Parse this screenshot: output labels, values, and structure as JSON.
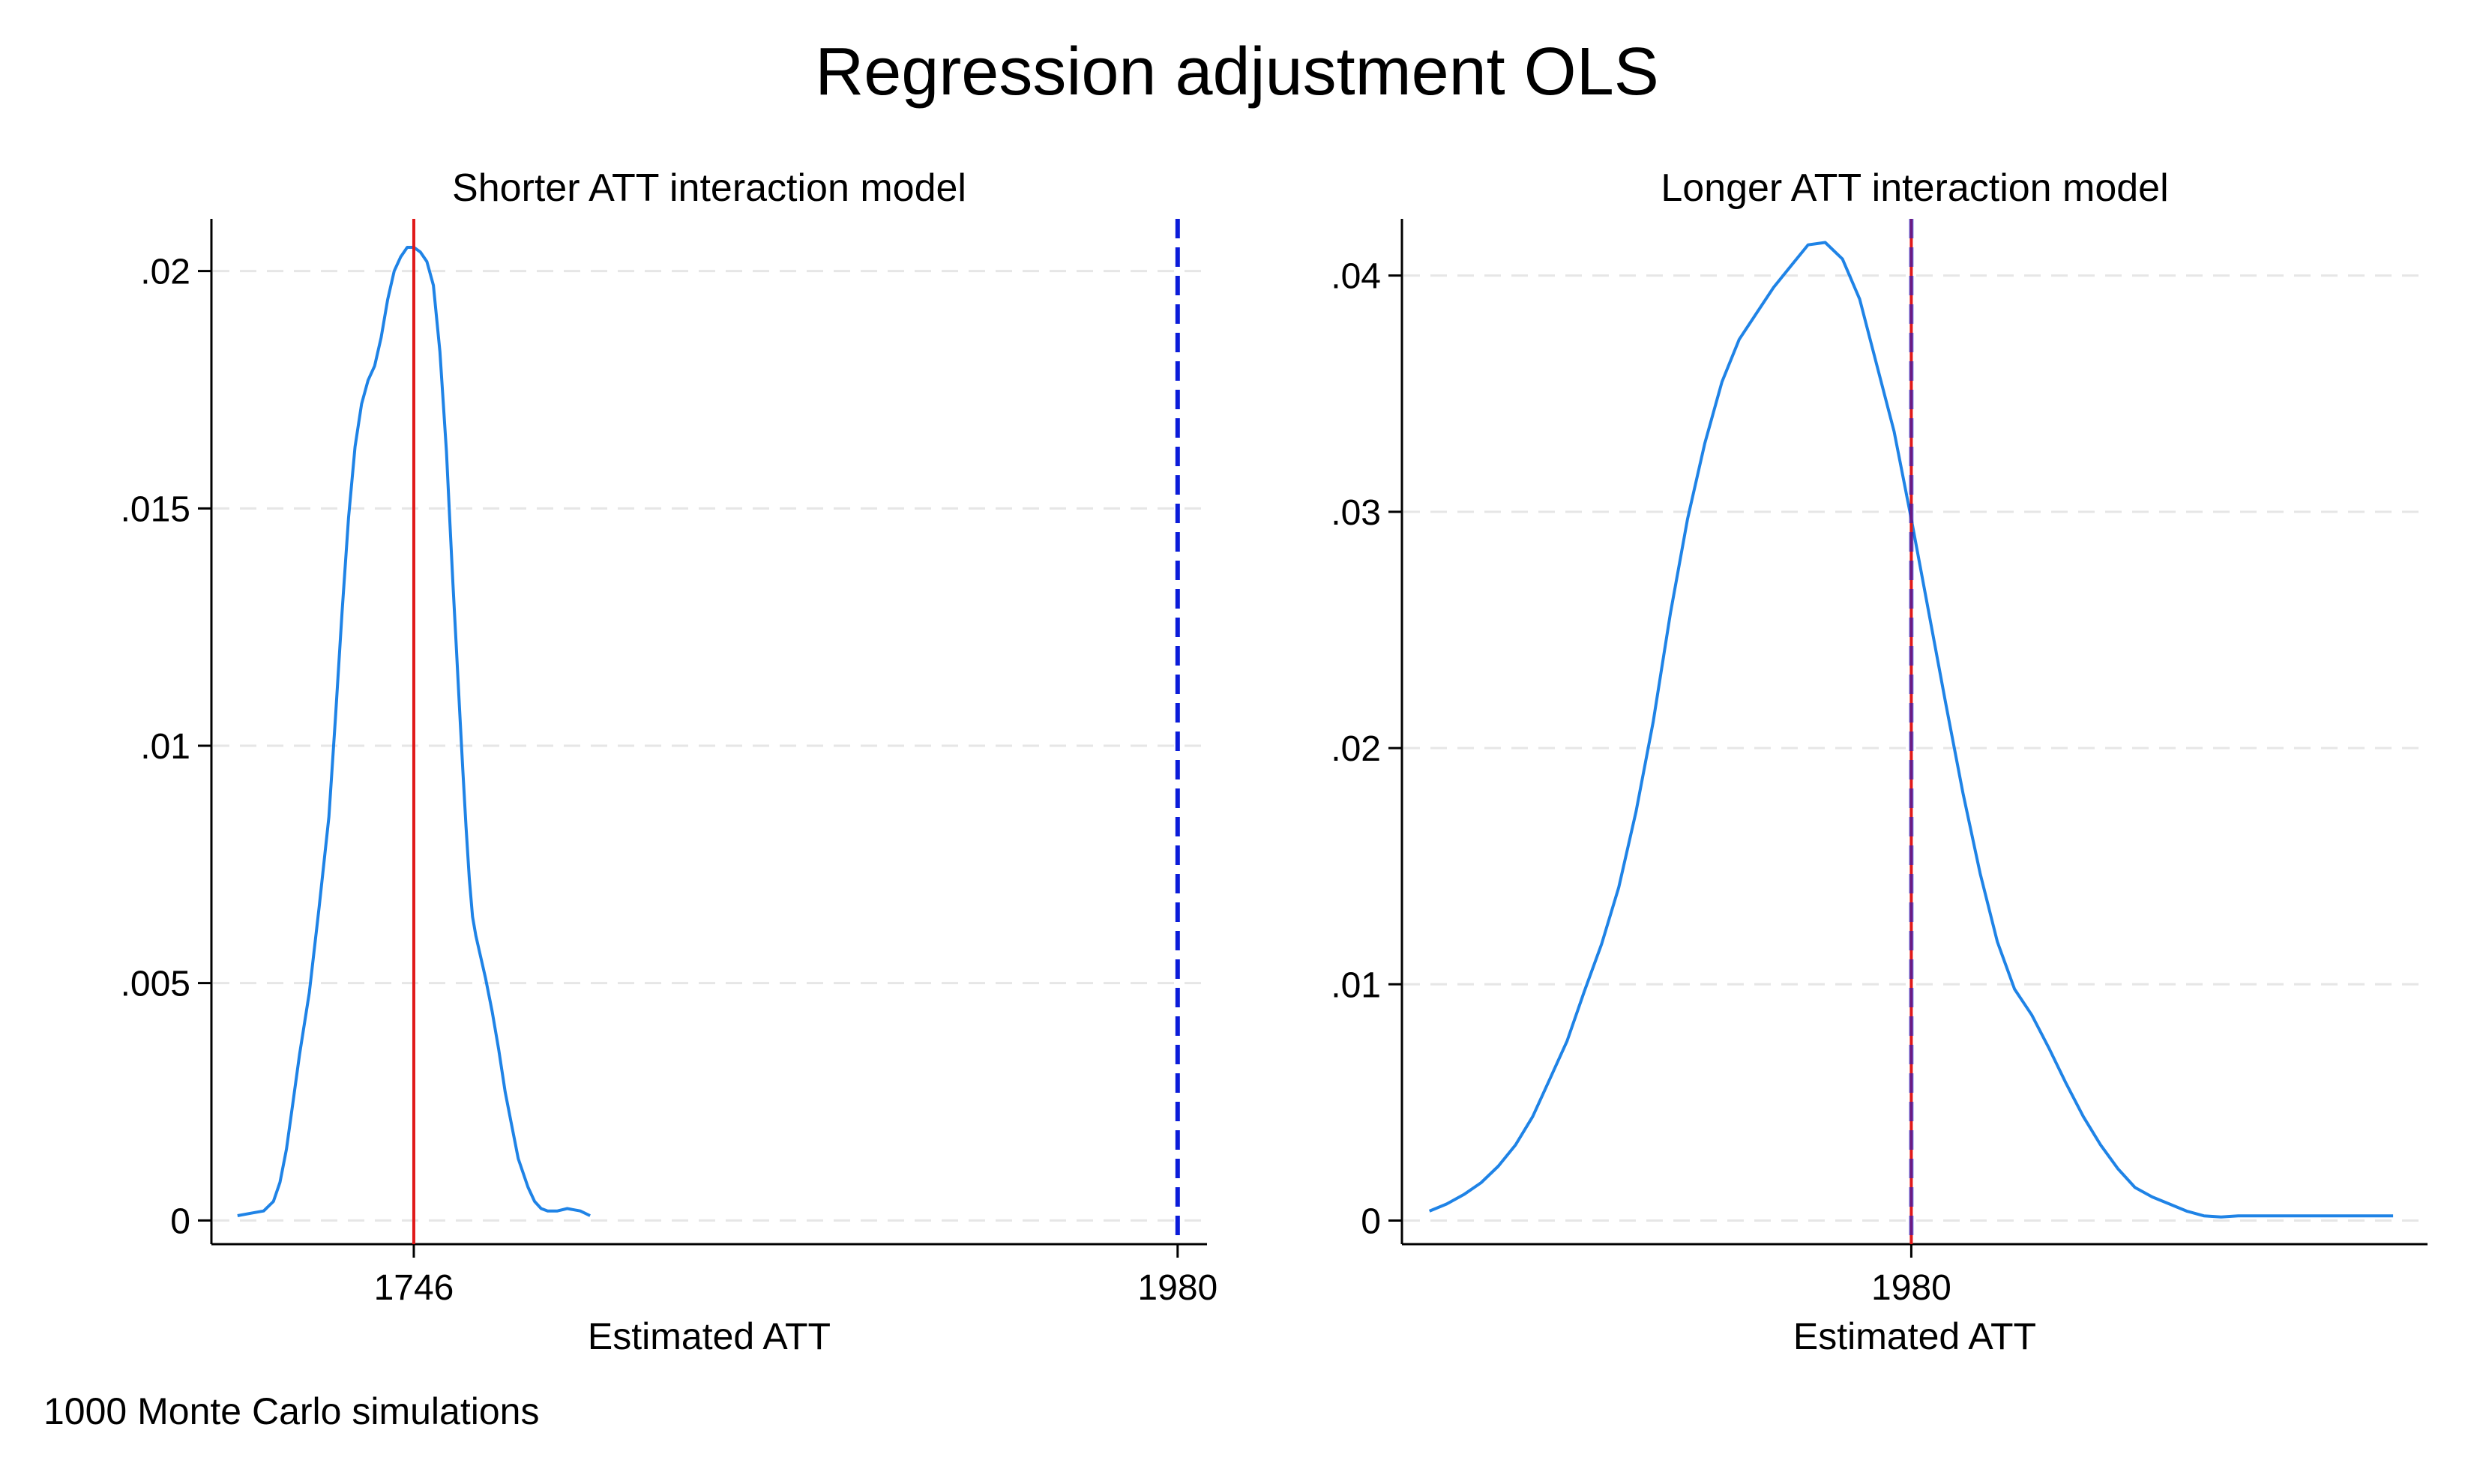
{
  "title": "Regression adjustment OLS",
  "note": "1000 Monte Carlo simulations",
  "colors": {
    "density": "#1f83e6",
    "estimate_line": "#e01919",
    "true_line": "#0b1cd9",
    "axis": "#000000",
    "grid": "#e6e6e6"
  },
  "chart_data": [
    {
      "type": "line",
      "title": "Shorter ATT interaction model",
      "xlabel": "Estimated ATT",
      "ylabel": "",
      "xlim": [
        1684,
        1989
      ],
      "ylim": [
        -0.0005,
        0.0211
      ],
      "xticks": [
        {
          "value": 1746,
          "label": "1746"
        },
        {
          "value": 1980,
          "label": "1980"
        }
      ],
      "yticks": [
        {
          "value": 0,
          "label": "0"
        },
        {
          "value": 0.005,
          "label": ".005"
        },
        {
          "value": 0.01,
          "label": ".01"
        },
        {
          "value": 0.015,
          "label": ".015"
        },
        {
          "value": 0.02,
          "label": ".02"
        }
      ],
      "grid": true,
      "vlines": [
        {
          "value": 1746,
          "style": "solid",
          "role": "estimate"
        },
        {
          "value": 1980,
          "style": "dashed",
          "role": "true"
        }
      ],
      "series": [
        {
          "x": [
            1692,
            1696,
            1700,
            1703,
            1705,
            1707,
            1709,
            1711,
            1714,
            1717,
            1720,
            1722,
            1724,
            1726,
            1728,
            1730,
            1732,
            1734,
            1736,
            1738,
            1740,
            1742,
            1744,
            1746,
            1748,
            1750,
            1752,
            1754,
            1756,
            1757,
            1758,
            1759,
            1760,
            1761,
            1762,
            1763,
            1764,
            1765,
            1766,
            1768,
            1770,
            1772,
            1774,
            1776,
            1778,
            1781,
            1783,
            1785,
            1787,
            1790,
            1793,
            1797,
            1800
          ],
          "y": [
            0.0001,
            0.00015,
            0.0002,
            0.0004,
            0.0008,
            0.0015,
            0.0025,
            0.0035,
            0.0048,
            0.0066,
            0.0085,
            0.0106,
            0.0128,
            0.0148,
            0.0163,
            0.0172,
            0.0177,
            0.018,
            0.0186,
            0.0194,
            0.02,
            0.0203,
            0.0205,
            0.0205,
            0.0204,
            0.0202,
            0.0197,
            0.0183,
            0.0162,
            0.0148,
            0.0134,
            0.0121,
            0.0108,
            0.0095,
            0.0083,
            0.0072,
            0.0064,
            0.006,
            0.0057,
            0.0051,
            0.0044,
            0.0036,
            0.0027,
            0.002,
            0.0013,
            0.0007,
            0.0004,
            0.00025,
            0.0002,
            0.0002,
            0.00025,
            0.0002,
            0.0001
          ]
        }
      ]
    },
    {
      "type": "line",
      "title": "Longer ATT interaction model",
      "xlabel": "Estimated ATT",
      "ylabel": "",
      "xlim": [
        1832,
        2130
      ],
      "ylim": [
        -0.001,
        0.0424
      ],
      "xticks": [
        {
          "value": 1980,
          "label": "1980"
        }
      ],
      "yticks": [
        {
          "value": 0,
          "label": "0"
        },
        {
          "value": 0.01,
          "label": ".01"
        },
        {
          "value": 0.02,
          "label": ".02"
        },
        {
          "value": 0.03,
          "label": ".03"
        },
        {
          "value": 0.04,
          "label": ".04"
        }
      ],
      "grid": true,
      "vlines": [
        {
          "value": 1980,
          "style": "solid",
          "role": "estimate"
        },
        {
          "value": 1980,
          "style": "dashed",
          "role": "true"
        }
      ],
      "series": [
        {
          "x": [
            1840,
            1845,
            1850,
            1855,
            1860,
            1865,
            1870,
            1875,
            1880,
            1885,
            1890,
            1895,
            1900,
            1905,
            1910,
            1915,
            1920,
            1925,
            1930,
            1935,
            1940,
            1945,
            1950,
            1955,
            1960,
            1965,
            1970,
            1975,
            1980,
            1985,
            1990,
            1995,
            2000,
            2005,
            2010,
            2015,
            2020,
            2025,
            2030,
            2035,
            2040,
            2045,
            2050,
            2055,
            2060,
            2065,
            2070,
            2075,
            2080,
            2085,
            2090,
            2095,
            2100,
            2105,
            2110,
            2115,
            2120
          ],
          "y": [
            0.0004,
            0.0007,
            0.0011,
            0.0016,
            0.0023,
            0.0032,
            0.0044,
            0.006,
            0.0076,
            0.0097,
            0.0117,
            0.0141,
            0.0173,
            0.0211,
            0.0257,
            0.0297,
            0.0329,
            0.0355,
            0.0373,
            0.0384,
            0.0395,
            0.0404,
            0.0413,
            0.0414,
            0.0407,
            0.039,
            0.0362,
            0.0334,
            0.0297,
            0.0258,
            0.0219,
            0.0181,
            0.0147,
            0.0118,
            0.0098,
            0.0087,
            0.0073,
            0.0058,
            0.0044,
            0.0032,
            0.0022,
            0.0014,
            0.001,
            0.0007,
            0.0004,
            0.0002,
            0.00015,
            0.0002,
            0.0002,
            0.0002,
            0.0002,
            0.0002,
            0.0002,
            0.0002,
            0.0002,
            0.0002,
            0.0002
          ]
        }
      ]
    }
  ]
}
